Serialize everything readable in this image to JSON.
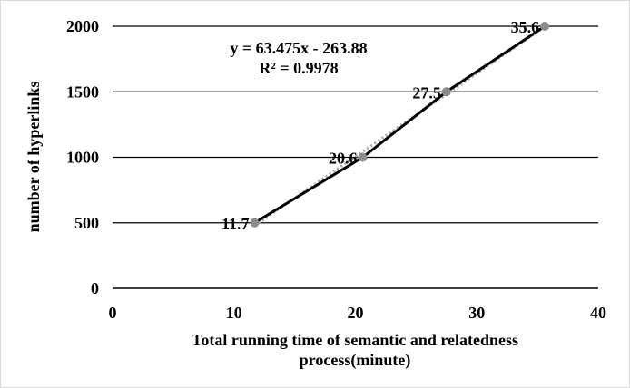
{
  "chart_data": {
    "type": "line",
    "title": "",
    "xlabel": "Total running time of semantic and relatedness process(minute)",
    "xlabel_lines": [
      "Total running time of semantic and relatedness",
      "process(minute)"
    ],
    "ylabel": "number of hyperlinks",
    "xlim": [
      0,
      40
    ],
    "ylim": [
      0,
      2000
    ],
    "x_ticks": [
      0,
      10,
      20,
      30,
      40
    ],
    "x_tick_labels": [
      "0",
      "10",
      "20",
      "30",
      "40"
    ],
    "y_ticks": [
      0,
      500,
      1000,
      1500,
      2000
    ],
    "y_tick_labels": [
      "0",
      "500",
      "1000",
      "1500",
      "2000"
    ],
    "grid": "horizontal",
    "legend": "none",
    "series": [
      {
        "x": [
          11.7,
          20.6,
          27.5,
          35.6
        ],
        "y": [
          500,
          1000,
          1500,
          2000
        ],
        "data_labels": [
          "11.7",
          "20.6",
          "27.5",
          "35.6"
        ],
        "line_color": "#000000",
        "marker_color": "#8c8c8c"
      }
    ],
    "trendline": {
      "slope": 63.475,
      "intercept": -263.88,
      "style": "dotted",
      "color": "#a6a6a6"
    },
    "annotations": [
      "y = 63.475x - 263.88",
      "R² = 0.9978"
    ]
  }
}
